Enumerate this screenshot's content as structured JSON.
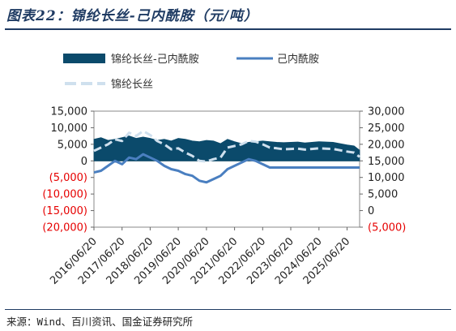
{
  "title": "图表22：锦纶长丝-己内酰胺（元/吨）",
  "source": "来源：Wind、百川资讯、国金证券研究所",
  "colors": {
    "spread": "#0b4a6b",
    "caprolactam": "#4a7fc0",
    "nylon": "#cfe0ee",
    "negative_tick": "#e60000",
    "frame": "#1f3b63"
  },
  "chart_data": {
    "type": "area+line",
    "title": "",
    "legend": {
      "position": "top",
      "entries": [
        "锦纶长丝-己内酰胺",
        "己内酰胺",
        "锦纶长丝"
      ]
    },
    "x_tick_labels": [
      "2016/06/20",
      "2017/06/20",
      "2018/06/20",
      "2019/06/20",
      "2020/06/20",
      "2021/06/20",
      "2022/06/20",
      "2023/06/20",
      "2024/06/20",
      "2025/06/20"
    ],
    "x_range": [
      "2016/06/20",
      "2025/11/30"
    ],
    "left_axis": {
      "range": [
        -20000,
        15000
      ],
      "ticks": [
        15000,
        10000,
        5000,
        0,
        -5000,
        -10000,
        -15000,
        -20000
      ],
      "tick_labels": [
        "15,000",
        "10,000",
        "5,000",
        "0",
        "(5,000)",
        "(10,000)",
        "(15,000)",
        "(20,000)"
      ],
      "negative_color": "red"
    },
    "right_axis": {
      "range": [
        -5000,
        30000
      ],
      "ticks": [
        30000,
        25000,
        20000,
        15000,
        10000,
        5000,
        0,
        -5000
      ],
      "tick_labels": [
        "30,000",
        "25,000",
        "20,000",
        "15,000",
        "10,000",
        "5,000",
        "0",
        "(5,000)"
      ],
      "negative_color": "red"
    },
    "series": [
      {
        "name": "锦纶长丝-己内酰胺",
        "axis": "left",
        "style": "area",
        "x": [
          "2016/06/20",
          "2016/09/20",
          "2016/12/20",
          "2017/03/20",
          "2017/06/20",
          "2017/09/20",
          "2017/12/20",
          "2018/03/20",
          "2018/06/20",
          "2018/09/20",
          "2018/12/20",
          "2019/03/20",
          "2019/06/20",
          "2019/09/20",
          "2019/12/20",
          "2020/03/20",
          "2020/06/20",
          "2020/09/20",
          "2020/12/20",
          "2021/03/20",
          "2021/06/20",
          "2021/09/20",
          "2021/12/20",
          "2022/03/20",
          "2022/06/20",
          "2022/09/20",
          "2022/12/20",
          "2023/03/20",
          "2023/06/20",
          "2023/09/20",
          "2023/12/20",
          "2024/03/20",
          "2024/06/20",
          "2024/09/20",
          "2024/12/20",
          "2025/03/20",
          "2025/06/20",
          "2025/09/20",
          "2025/11/30"
        ],
        "values": [
          6500,
          7000,
          6200,
          6500,
          7000,
          7500,
          6800,
          7200,
          6800,
          6200,
          6500,
          6000,
          6800,
          6500,
          6000,
          5800,
          6200,
          6000,
          5200,
          6500,
          5800,
          5200,
          5600,
          5800,
          6000,
          5800,
          5600,
          5500,
          5600,
          5700,
          5400,
          5600,
          5800,
          5700,
          5600,
          5200,
          4800,
          4500,
          3200
        ]
      },
      {
        "name": "己内酰胺",
        "axis": "right",
        "style": "line",
        "x": [
          "2016/06/20",
          "2016/09/20",
          "2016/12/20",
          "2017/03/20",
          "2017/06/20",
          "2017/09/20",
          "2017/12/20",
          "2018/03/20",
          "2018/06/20",
          "2018/09/20",
          "2018/12/20",
          "2019/03/20",
          "2019/06/20",
          "2019/09/20",
          "2019/12/20",
          "2020/03/20",
          "2020/06/20",
          "2020/09/20",
          "2020/12/20",
          "2021/03/20",
          "2021/06/20",
          "2021/09/20",
          "2021/12/20",
          "2022/03/20",
          "2022/06/20",
          "2022/09/20",
          "2022/12/20",
          "2023/03/20",
          "2023/06/20",
          "2023/09/20",
          "2023/12/20",
          "2024/03/20",
          "2024/06/20",
          "2024/09/20",
          "2024/12/20",
          "2025/03/20",
          "2025/06/20",
          "2025/09/20",
          "2025/11/30"
        ],
        "values": [
          11500,
          12000,
          13500,
          15000,
          14000,
          16000,
          15500,
          17000,
          16000,
          15000,
          13500,
          12500,
          12000,
          11000,
          10500,
          9000,
          8500,
          9500,
          10500,
          12500,
          13500,
          14500,
          15500,
          15000,
          14000,
          13000,
          13000,
          13000,
          13000,
          13000,
          13000,
          13000,
          13000,
          13000,
          13000,
          13000,
          13000,
          13000,
          13000
        ]
      },
      {
        "name": "锦纶长丝",
        "axis": "right",
        "style": "dashed",
        "x": [
          "2016/06/20",
          "2016/09/20",
          "2016/12/20",
          "2017/03/20",
          "2017/06/20",
          "2017/09/20",
          "2017/12/20",
          "2018/03/20",
          "2018/06/20",
          "2018/09/20",
          "2018/12/20",
          "2019/03/20",
          "2019/06/20",
          "2019/09/20",
          "2019/12/20",
          "2020/03/20",
          "2020/06/20",
          "2020/09/20",
          "2020/12/20",
          "2021/03/20",
          "2021/06/20",
          "2021/09/20",
          "2021/12/20",
          "2022/03/20",
          "2022/06/20",
          "2022/09/20",
          "2022/12/20",
          "2023/03/20",
          "2023/06/20",
          "2023/09/20",
          "2023/12/20",
          "2024/03/20",
          "2024/06/20",
          "2024/09/20",
          "2024/12/20",
          "2025/03/20",
          "2025/06/20",
          "2025/09/20",
          "2025/11/30"
        ],
        "values": [
          18000,
          19000,
          20000,
          21500,
          21000,
          23500,
          22500,
          24000,
          22800,
          21000,
          20000,
          18500,
          18800,
          17500,
          16500,
          15000,
          14800,
          15500,
          16000,
          19000,
          19500,
          20000,
          21000,
          20800,
          20000,
          19000,
          18800,
          18500,
          18600,
          18700,
          18400,
          18600,
          18800,
          18700,
          18600,
          18200,
          17800,
          17500,
          16200
        ]
      }
    ]
  }
}
